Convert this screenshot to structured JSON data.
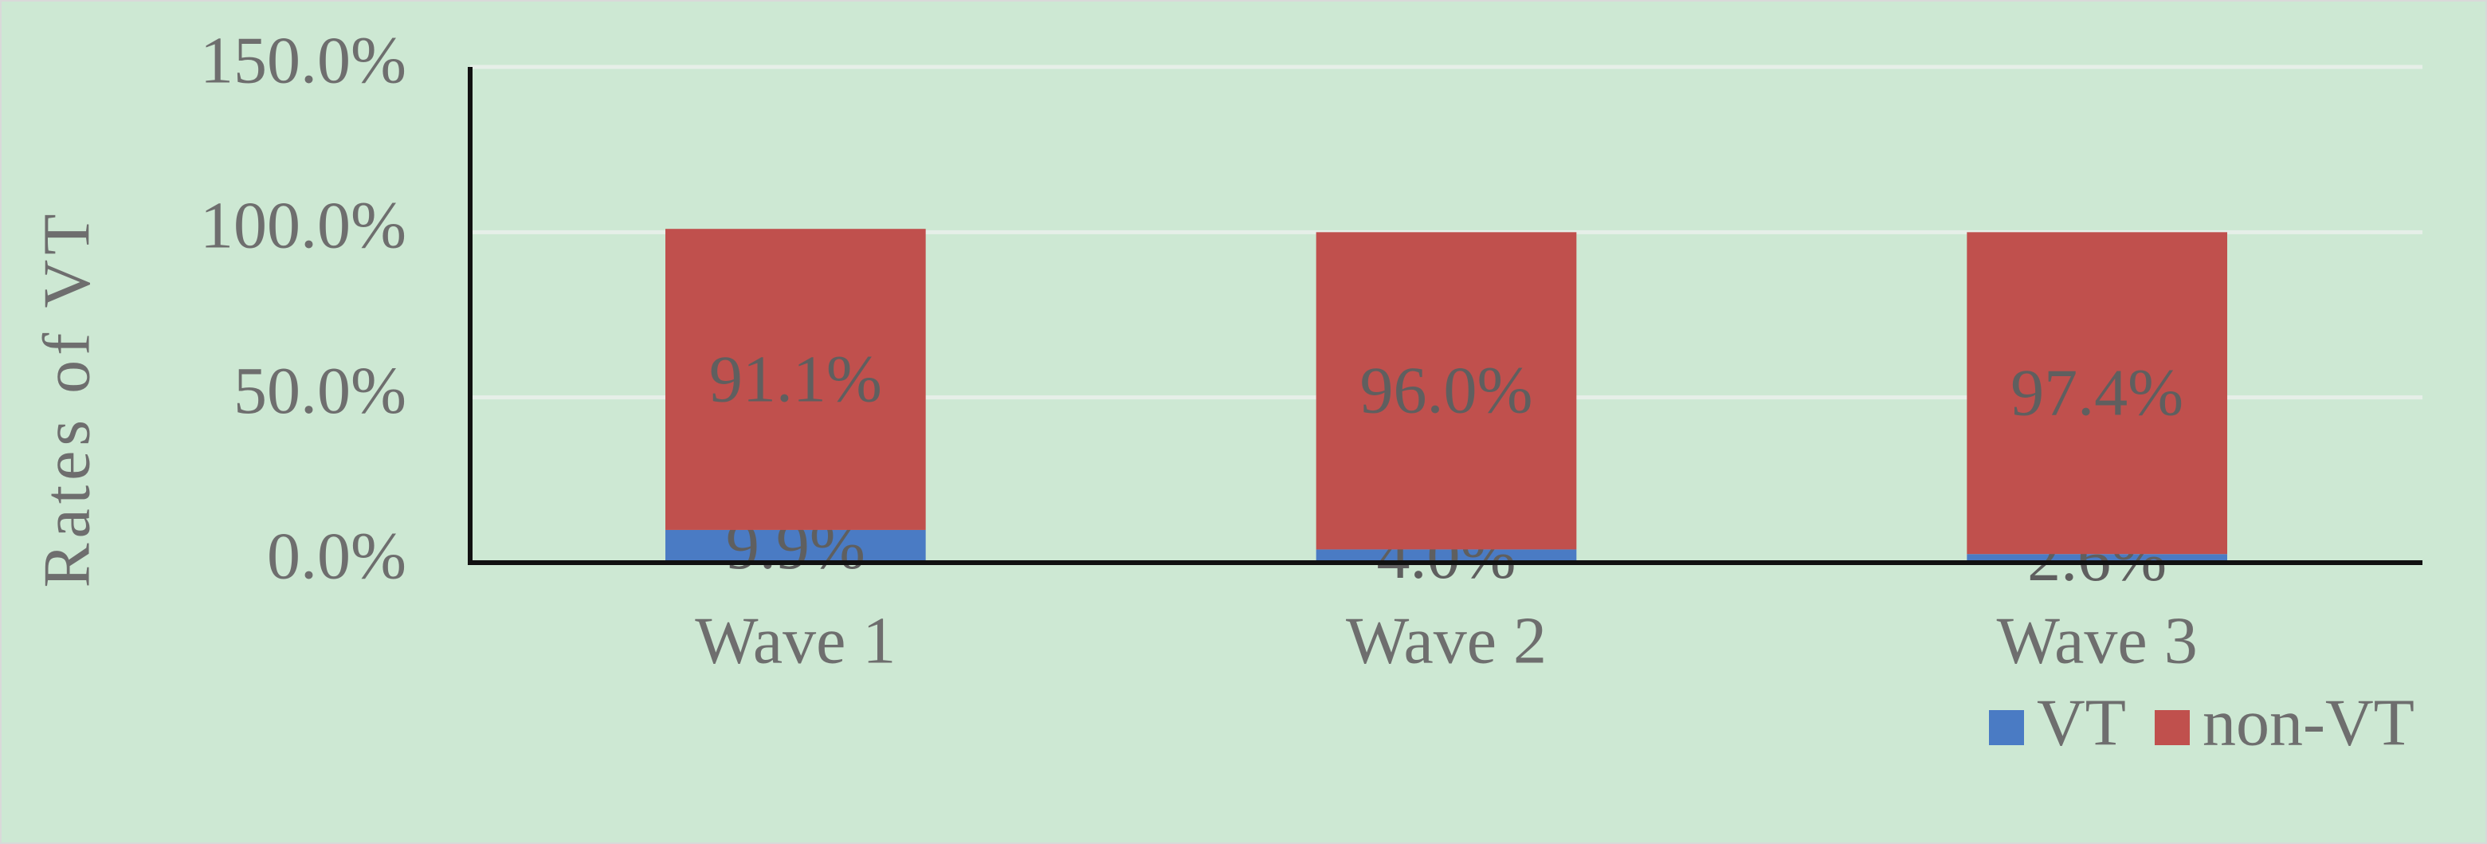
{
  "chart_data": {
    "type": "bar",
    "stacked": true,
    "y_label": "Rates of VT",
    "categories": [
      "Wave 1",
      "Wave 2",
      "Wave 3"
    ],
    "series": [
      {
        "name": "VT",
        "color": "#4a7bc4",
        "values": [
          9.9,
          4.0,
          2.6
        ],
        "value_labels": [
          "9.9%",
          "4.0%",
          "2.6%"
        ]
      },
      {
        "name": "non-VT",
        "color": "#c0504d",
        "values": [
          91.1,
          96.0,
          97.4
        ],
        "value_labels": [
          "91.1%",
          "96.0%",
          "97.4%"
        ]
      }
    ],
    "ylim": [
      0,
      150
    ],
    "yticks": [
      {
        "value": 0,
        "label": "0.0%"
      },
      {
        "value": 50,
        "label": "50.0%"
      },
      {
        "value": 100,
        "label": "100.0%"
      },
      {
        "value": 150,
        "label": "150.0%"
      }
    ],
    "grid": true,
    "legend": "bottom-right"
  }
}
